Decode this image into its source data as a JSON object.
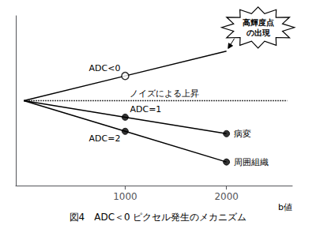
{
  "chart_data": {
    "type": "line",
    "title": "図4　ADC＜0 ピクセル発生のメカニズム",
    "xlabel": "b値",
    "xlim": [
      -80,
      2650
    ],
    "xticks": [
      1000,
      2000
    ],
    "ylim": [
      -0.72,
      0.72
    ],
    "yticks": [],
    "tick_labels": "x",
    "grid": false,
    "series": [
      {
        "name": "ADC<0",
        "type": "line",
        "color": "#000000",
        "x": [
          0,
          1000,
          2000
        ],
        "values": [
          0.0,
          0.21,
          0.42
        ]
      },
      {
        "name": "ノイズによる上昇",
        "type": "line",
        "line_style": "dotted",
        "color": "#000000",
        "x": [
          0,
          1000,
          2600
        ],
        "values": [
          0,
          0,
          0
        ]
      },
      {
        "name": "ADC=1",
        "type": "line",
        "color": "#000000",
        "x": [
          0,
          1000,
          2000
        ],
        "values": [
          0.0,
          -0.14,
          -0.28
        ]
      },
      {
        "name": "ADC=2",
        "type": "line",
        "color": "#000000",
        "x": [
          0,
          1000,
          2000
        ],
        "values": [
          0.0,
          -0.26,
          -0.52
        ]
      },
      {
        "type": "scatter",
        "marker": "open_circle",
        "color": "#000000",
        "x": [
          1000
        ],
        "values": [
          0.21
        ]
      },
      {
        "type": "scatter",
        "marker": "circle",
        "color": "#000000",
        "x": [
          1000,
          2000,
          1000,
          2000
        ],
        "values": [
          -0.14,
          -0.28,
          -0.26,
          -0.52
        ]
      }
    ],
    "annotations": [
      {
        "text": "病変",
        "x": 2000,
        "y": -0.28
      },
      {
        "text": "周囲組織",
        "x": 2000,
        "y": -0.52
      },
      {
        "text": "高輝度点\nの出現",
        "x": 2000,
        "y": 0.42,
        "marker": "starburst"
      }
    ]
  }
}
